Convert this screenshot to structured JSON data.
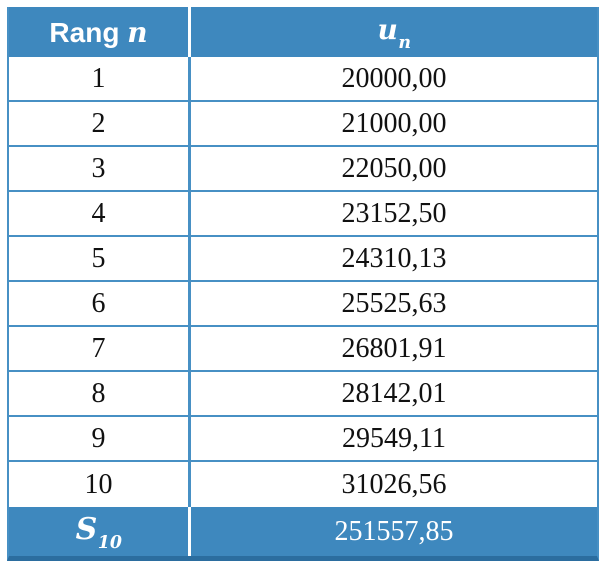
{
  "header": {
    "rank_label": "Rang",
    "rank_var": "n",
    "value_var": "u",
    "value_sub": "n"
  },
  "rows": [
    {
      "rank": "1",
      "value": "20000,00"
    },
    {
      "rank": "2",
      "value": "21000,00"
    },
    {
      "rank": "3",
      "value": "22050,00"
    },
    {
      "rank": "4",
      "value": "23152,50"
    },
    {
      "rank": "5",
      "value": "24310,13"
    },
    {
      "rank": "6",
      "value": "25525,63"
    },
    {
      "rank": "7",
      "value": "26801,91"
    },
    {
      "rank": "8",
      "value": "28142,01"
    },
    {
      "rank": "9",
      "value": "29549,11"
    },
    {
      "rank": "10",
      "value": "31026,56"
    }
  ],
  "footer": {
    "sum_base": "S",
    "sum_sub": "10",
    "total": "251557,85"
  },
  "colors": {
    "header_blue": "#3E88BE",
    "border_blue": "#4790C4",
    "bottom_border": "#2B6D9F",
    "text_dark": "#111111",
    "text_light": "#FFFFFF"
  }
}
